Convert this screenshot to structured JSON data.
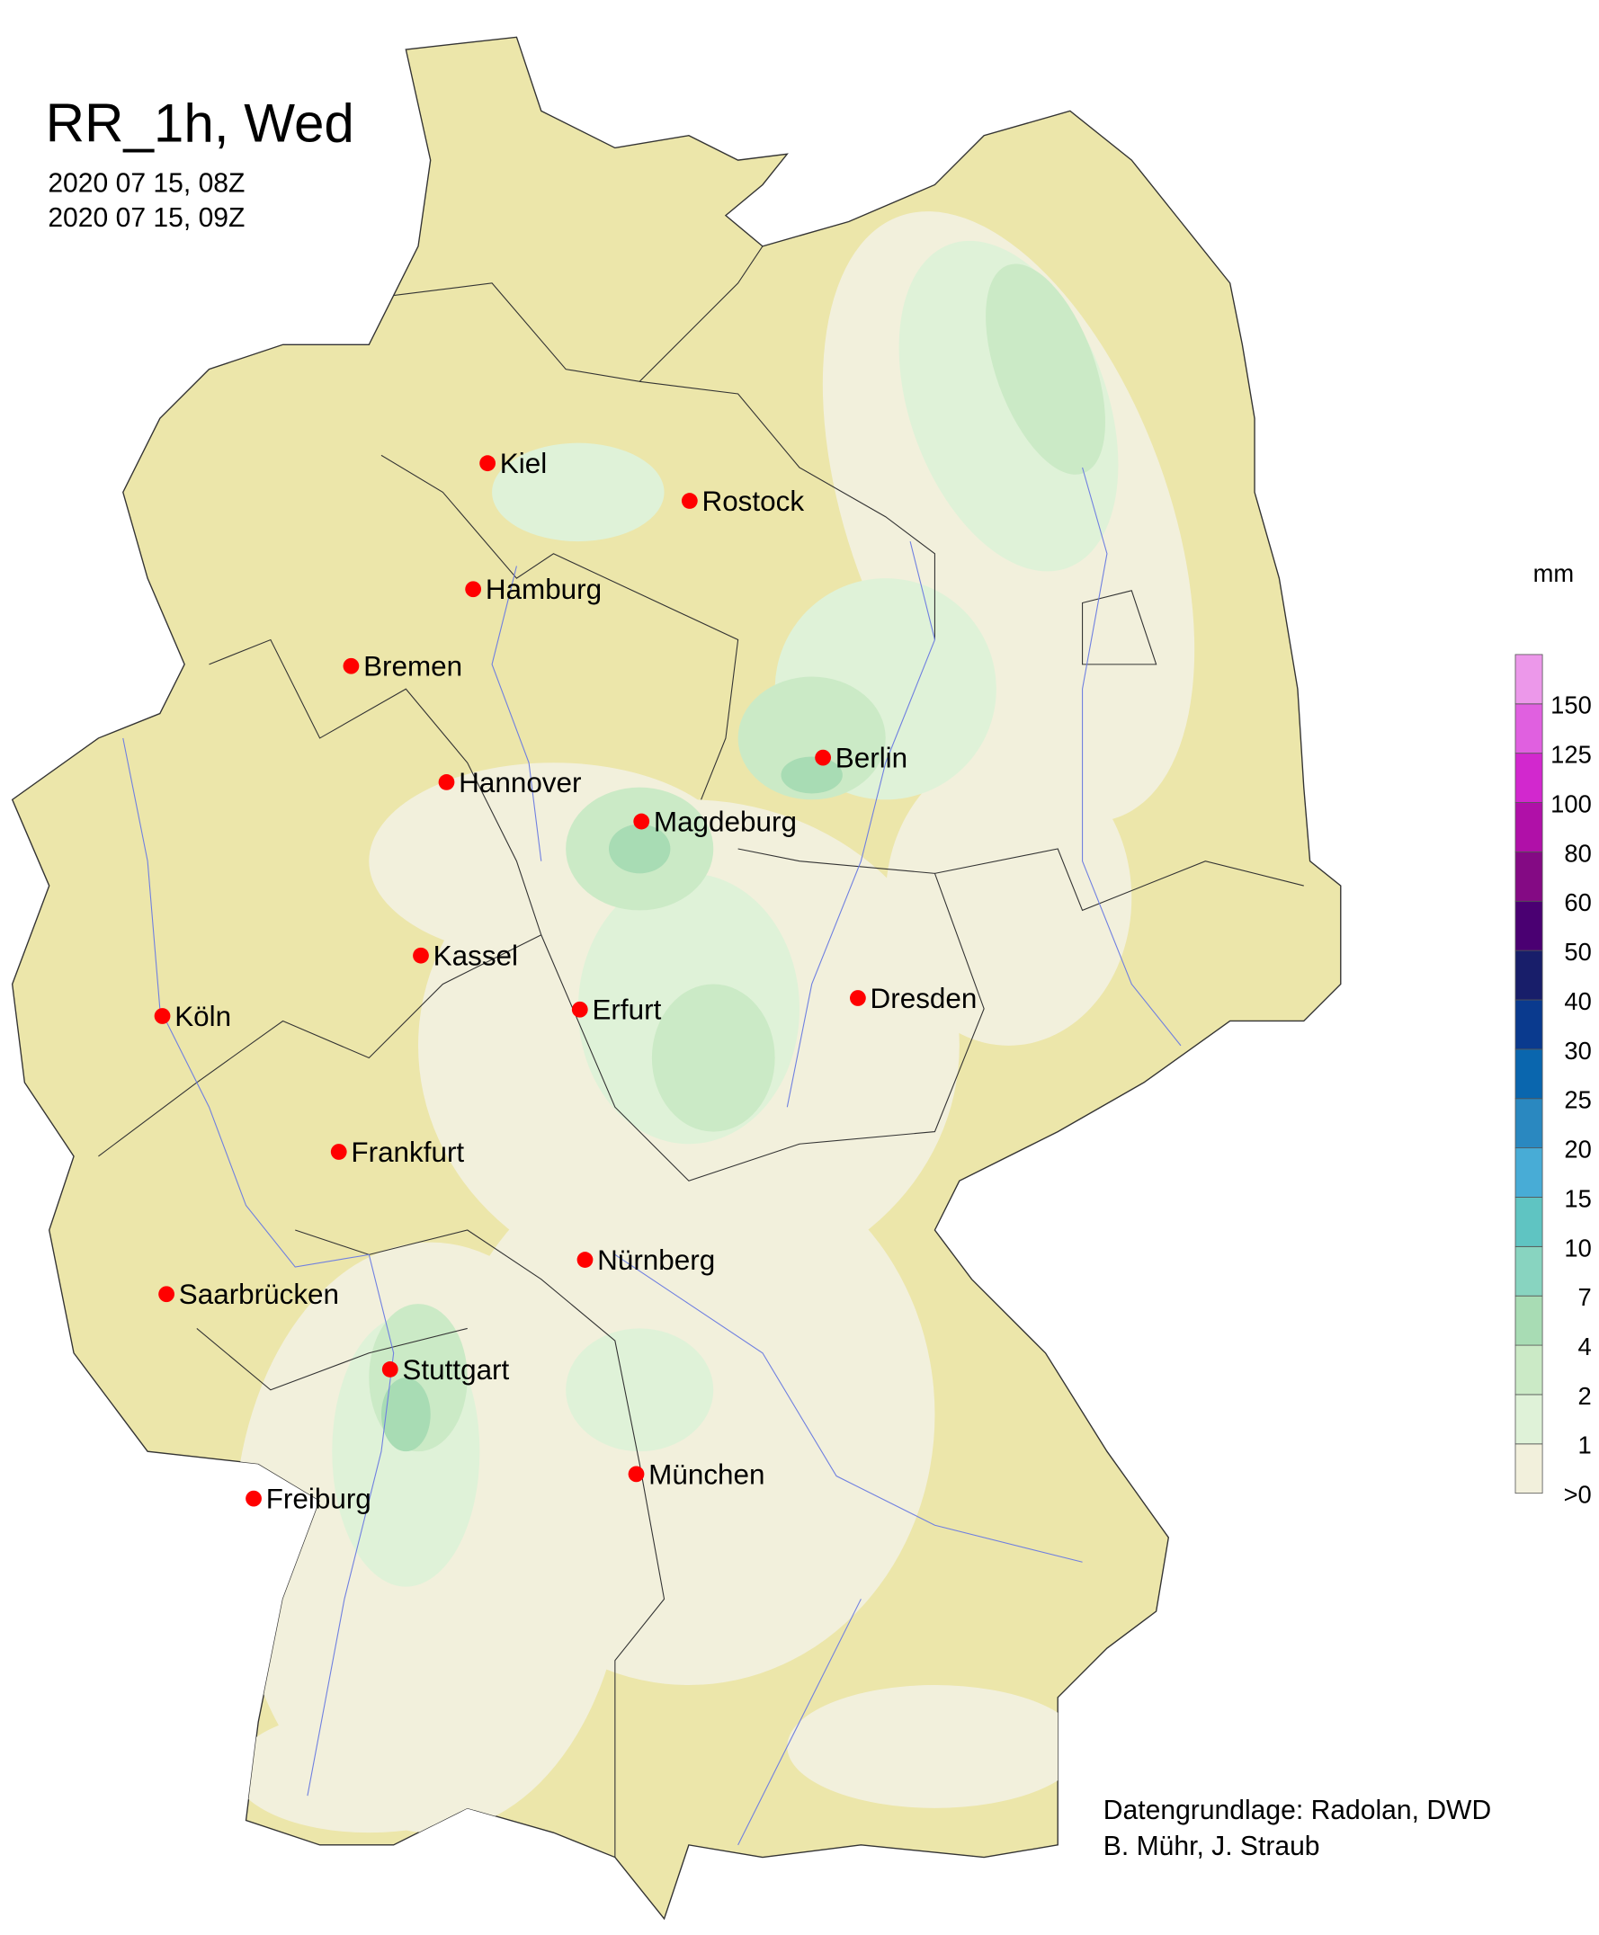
{
  "title": "RR_1h, Wed",
  "time_start": "2020 07 15, 08Z",
  "time_end": "2020 07 15, 09Z",
  "credits": [
    "Datengrundlage: Radolan, DWD",
    "B. Mühr, J. Straub"
  ],
  "legend": {
    "unit": "mm",
    "labels": [
      ">0",
      "1",
      "2",
      "4",
      "7",
      "10",
      "15",
      "20",
      "25",
      "30",
      "40",
      "50",
      "60",
      "80",
      "100",
      "125",
      "150"
    ],
    "colors": [
      "#f2f0dc",
      "#dff2d8",
      "#cbeac6",
      "#a8dcb4",
      "#88d4c0",
      "#5fc4c2",
      "#48acd6",
      "#2a88c0",
      "#0a66ae",
      "#0a3a8e",
      "#181e6a",
      "#4a0072",
      "#840a84",
      "#b010a8",
      "#d228ce",
      "#e060e0",
      "#ec98ea"
    ]
  },
  "map_colors": {
    "land": "#ece6aa",
    "no_rain": "#f2f0dc",
    "rain_light": "#dff2d8",
    "rain_mid": "#cbeac6",
    "rain_heavy": "#a8dcb4",
    "city_marker": "#ff0000",
    "river": "#6f7fe0"
  },
  "cities": [
    {
      "name": "Kiel",
      "lon": 10.13,
      "lat": 54.32
    },
    {
      "name": "Rostock",
      "lon": 12.1,
      "lat": 54.09
    },
    {
      "name": "Hamburg",
      "lon": 9.99,
      "lat": 53.55
    },
    {
      "name": "Bremen",
      "lon": 8.8,
      "lat": 53.08
    },
    {
      "name": "Berlin",
      "lon": 13.4,
      "lat": 52.52
    },
    {
      "name": "Hannover",
      "lon": 9.73,
      "lat": 52.37
    },
    {
      "name": "Magdeburg",
      "lon": 11.63,
      "lat": 52.13
    },
    {
      "name": "Kassel",
      "lon": 9.48,
      "lat": 51.31
    },
    {
      "name": "Köln",
      "lon": 6.96,
      "lat": 50.94
    },
    {
      "name": "Erfurt",
      "lon": 11.03,
      "lat": 50.98
    },
    {
      "name": "Dresden",
      "lon": 13.74,
      "lat": 51.05
    },
    {
      "name": "Frankfurt",
      "lon": 8.68,
      "lat": 50.11
    },
    {
      "name": "Nürnberg",
      "lon": 11.08,
      "lat": 49.45
    },
    {
      "name": "Saarbrücken",
      "lon": 7.0,
      "lat": 49.24
    },
    {
      "name": "Stuttgart",
      "lon": 9.18,
      "lat": 48.78
    },
    {
      "name": "München",
      "lon": 11.58,
      "lat": 48.14
    },
    {
      "name": "Freiburg",
      "lon": 7.85,
      "lat": 47.99
    }
  ]
}
